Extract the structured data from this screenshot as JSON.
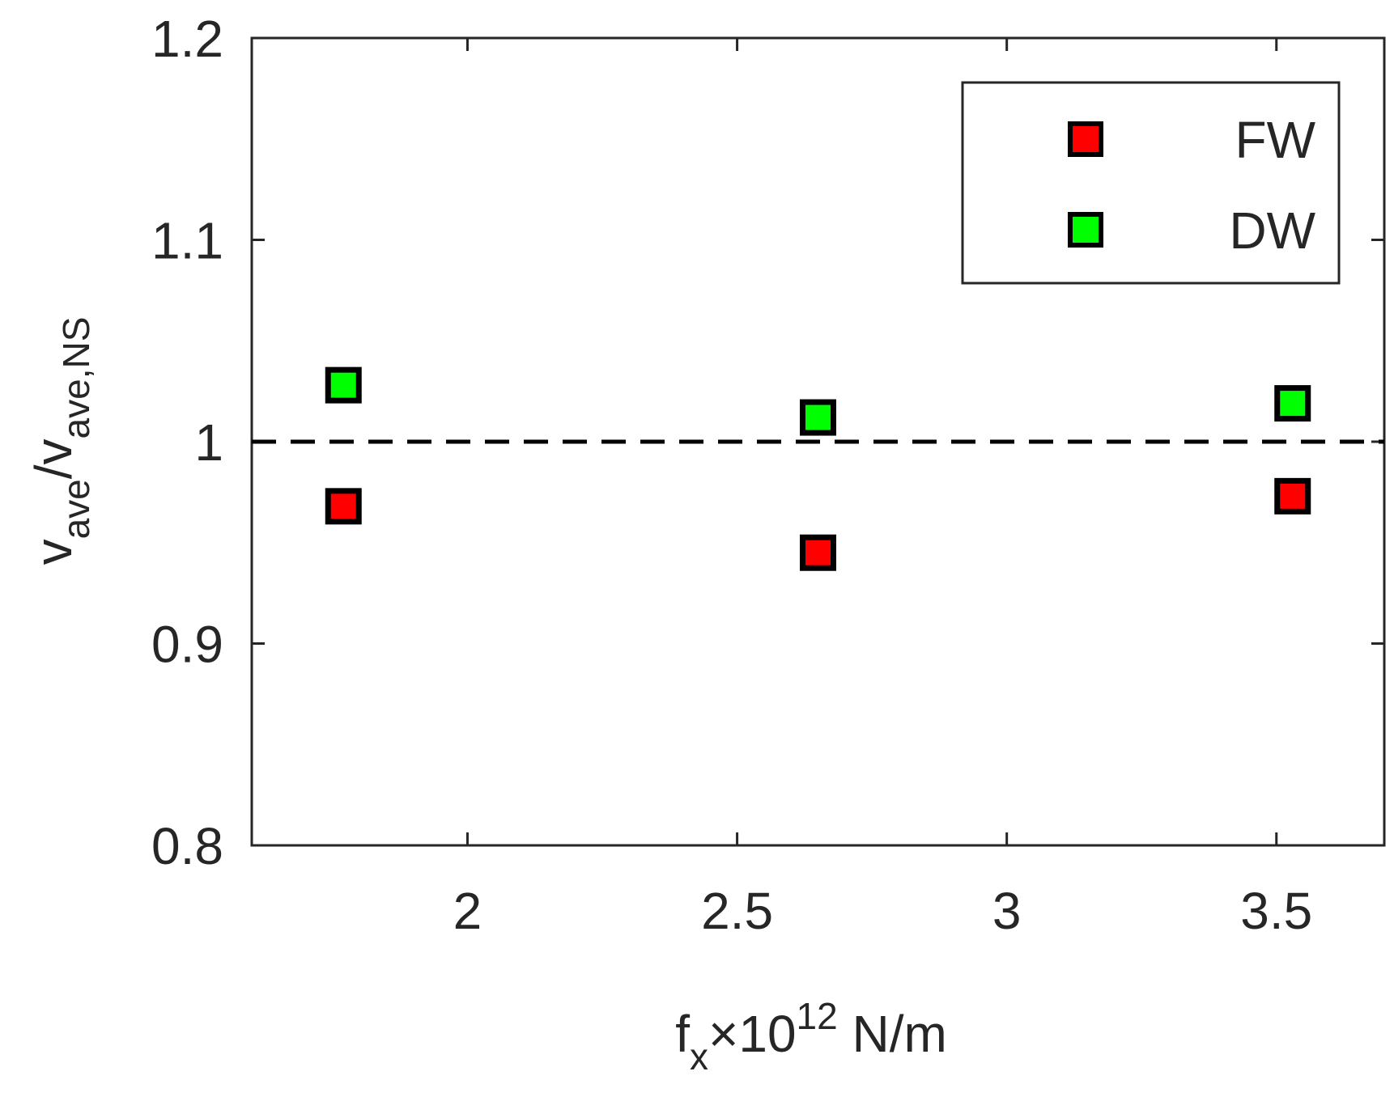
{
  "chart_data": {
    "type": "scatter",
    "xlim": [
      1.6,
      3.7
    ],
    "ylim": [
      0.8,
      1.2
    ],
    "xticks": [
      2,
      2.5,
      3,
      3.5
    ],
    "yticks": [
      0.8,
      0.9,
      1,
      1.1,
      1.2
    ],
    "xtick_labels": [
      "2",
      "2.5",
      "3",
      "3.5"
    ],
    "ytick_labels": [
      "0.8",
      "0.9",
      "1",
      "1.1",
      "1.2"
    ],
    "xlabel": {
      "base": "f",
      "sub": "x",
      "mid": "×10",
      "sup": "12",
      "tail": " N/m"
    },
    "ylabel": {
      "v1": "v",
      "sub1": "ave",
      "slash": "/v",
      "sub2": "ave,NS"
    },
    "reference_line": {
      "y": 1.0,
      "style": "dashed",
      "color": "#000000"
    },
    "grid": false,
    "legend_position": "top-right",
    "series": [
      {
        "name": "FW",
        "color": "#ff0000",
        "marker": "square",
        "x": [
          1.77,
          2.65,
          3.53
        ],
        "y": [
          0.968,
          0.945,
          0.973
        ]
      },
      {
        "name": "DW",
        "color": "#00ff00",
        "marker": "square",
        "x": [
          1.77,
          2.65,
          3.53
        ],
        "y": [
          1.028,
          1.012,
          1.019
        ]
      }
    ]
  }
}
